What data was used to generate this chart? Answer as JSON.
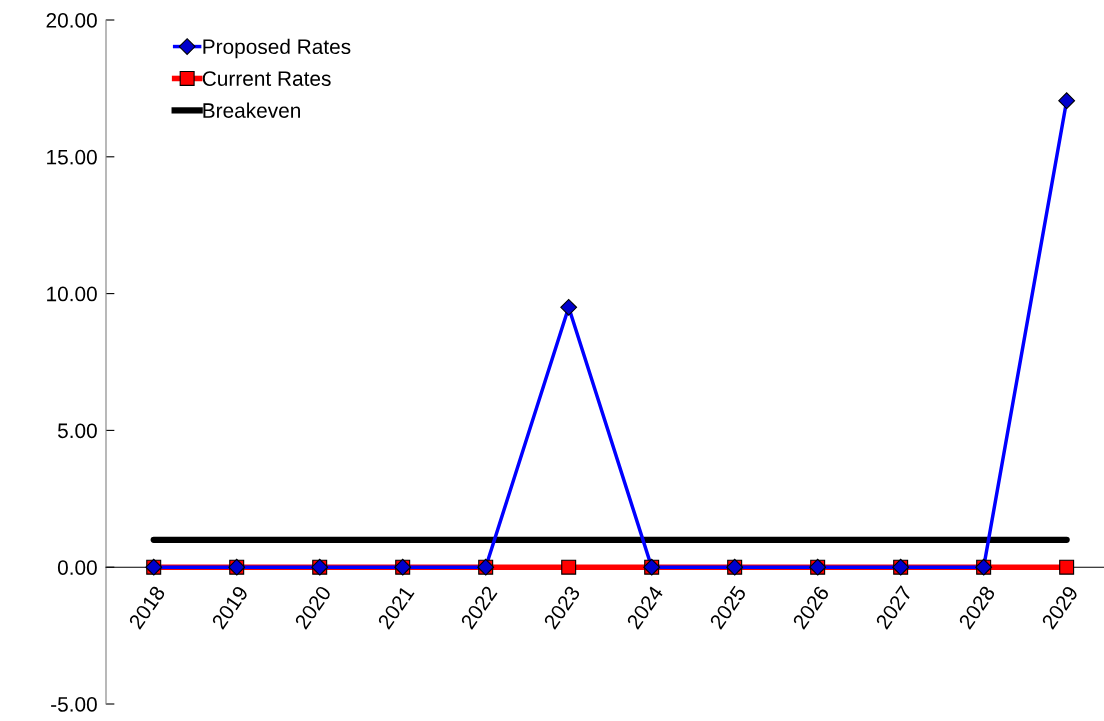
{
  "chart_data": {
    "type": "line",
    "categories": [
      "2018",
      "2019",
      "2020",
      "2021",
      "2022",
      "2023",
      "2024",
      "2025",
      "2026",
      "2027",
      "2028",
      "2029"
    ],
    "series": [
      {
        "name": "Proposed Rates",
        "color": "#0000ff",
        "marker": "diamond",
        "values": [
          0,
          0,
          0,
          0,
          0,
          9.5,
          0,
          0,
          0,
          0,
          0,
          17.05
        ]
      },
      {
        "name": "Current Rates",
        "color": "#ff0000",
        "marker": "square",
        "values": [
          0,
          0,
          0,
          0,
          0,
          0,
          0,
          0,
          0,
          0,
          0,
          0
        ]
      },
      {
        "name": "Breakeven",
        "color": "#000000",
        "marker": "none",
        "values": [
          1,
          1,
          1,
          1,
          1,
          1,
          1,
          1,
          1,
          1,
          1,
          1
        ]
      }
    ],
    "ylim": [
      -5,
      20
    ],
    "yticks": [
      {
        "value": -5,
        "label": "-5.00"
      },
      {
        "value": 0,
        "label": "0.00"
      },
      {
        "value": 5,
        "label": "5.00"
      },
      {
        "value": 10,
        "label": "10.00"
      },
      {
        "value": 15,
        "label": "15.00"
      },
      {
        "value": 20,
        "label": "20.00"
      }
    ],
    "grid": false,
    "legend": "top left",
    "line_style": "solid"
  }
}
